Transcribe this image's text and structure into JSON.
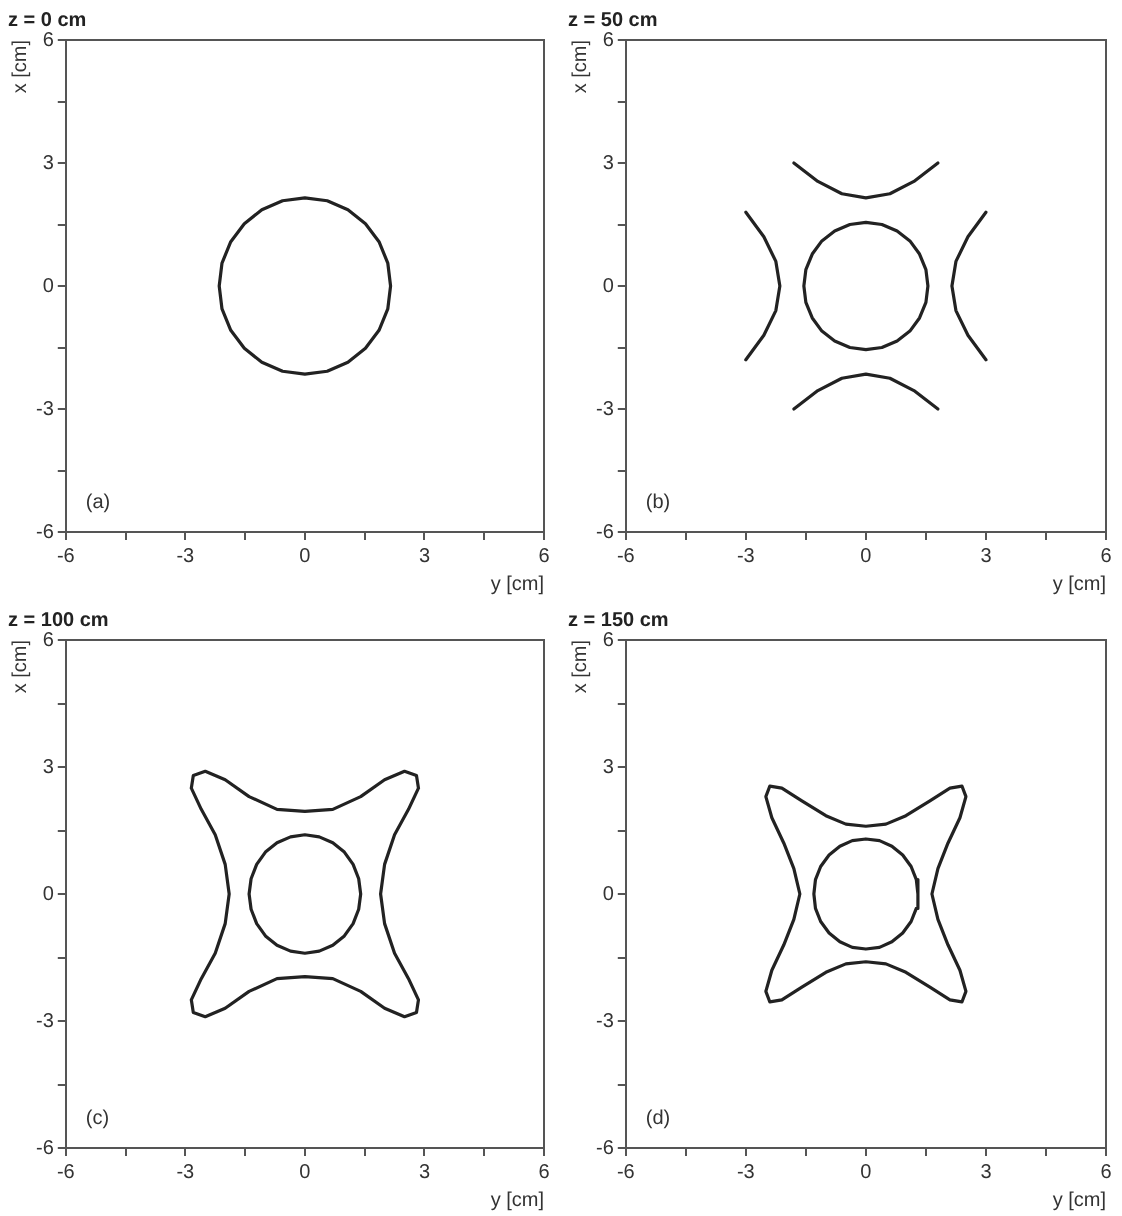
{
  "chart_data": [
    {
      "type": "line",
      "title": "z = 0 cm",
      "xlabel": "y [cm]",
      "ylabel": "x [cm]",
      "annotations": [
        "(a)"
      ],
      "marker": "none",
      "legend": false,
      "xlim": [
        -6,
        6
      ],
      "ylim": [
        -6,
        6
      ],
      "xticks": [
        -6,
        {
          "value": -4.5,
          "label": null
        },
        -3,
        {
          "value": -1.5,
          "label": null
        },
        0,
        {
          "value": 1.5,
          "label": null
        },
        3,
        {
          "value": 4.5,
          "label": null
        },
        6
      ],
      "yticks": [
        -6,
        {
          "value": -4.5,
          "label": null
        },
        -3,
        {
          "value": -1.5,
          "label": null
        },
        0,
        {
          "value": 1.5,
          "label": null
        },
        3,
        {
          "value": 4.5,
          "label": null
        },
        6
      ],
      "series": [
        {
          "color": "#222222",
          "x": [
            -2.15,
            -2.08,
            -1.86,
            -1.52,
            -1.08,
            -0.56,
            0,
            0.56,
            1.08,
            1.52,
            1.86,
            2.08,
            2.15,
            null,
            -2.15,
            -2.08,
            -1.86,
            -1.52,
            -1.08,
            -0.56,
            0,
            0.56,
            1.08,
            1.52,
            1.86,
            2.08,
            2.15
          ],
          "values": [
            0,
            0.56,
            1.08,
            1.52,
            1.86,
            2.08,
            2.15,
            2.08,
            1.86,
            1.52,
            1.08,
            0.56,
            0,
            null,
            0,
            -0.56,
            -1.08,
            -1.52,
            -1.86,
            -2.08,
            -2.15,
            -2.08,
            -1.86,
            -1.52,
            -1.08,
            -0.56,
            0
          ]
        }
      ]
    },
    {
      "type": "line",
      "title": "z = 50 cm",
      "xlabel": "y [cm]",
      "ylabel": "x [cm]",
      "annotations": [
        "(b)"
      ],
      "marker": "none",
      "legend": false,
      "xlim": [
        -6,
        6
      ],
      "ylim": [
        -6,
        6
      ],
      "xticks": [
        -6,
        {
          "value": -4.5,
          "label": null
        },
        -3,
        {
          "value": -1.5,
          "label": null
        },
        0,
        {
          "value": 1.5,
          "label": null
        },
        3,
        {
          "value": 4.5,
          "label": null
        },
        6
      ],
      "yticks": [
        -6,
        {
          "value": -4.5,
          "label": null
        },
        -3,
        {
          "value": -1.5,
          "label": null
        },
        0,
        {
          "value": 1.5,
          "label": null
        },
        3,
        {
          "value": 4.5,
          "label": null
        },
        6
      ],
      "series": [
        {
          "color": "#222222",
          "x": [
            -1.55,
            -1.5,
            -1.34,
            -1.1,
            -0.78,
            -0.4,
            0,
            0.4,
            0.78,
            1.1,
            1.34,
            1.5,
            1.55,
            null,
            -1.55,
            -1.5,
            -1.34,
            -1.1,
            -0.78,
            -0.4,
            0,
            0.4,
            0.78,
            1.1,
            1.34,
            1.5,
            1.55
          ],
          "values": [
            0,
            0.4,
            0.78,
            1.1,
            1.34,
            1.5,
            1.55,
            1.5,
            1.34,
            1.1,
            0.78,
            0.4,
            0,
            null,
            0,
            -0.4,
            -0.78,
            -1.1,
            -1.34,
            -1.5,
            -1.55,
            -1.5,
            -1.34,
            -1.1,
            -0.78,
            -0.4,
            0
          ]
        },
        {
          "color": "#222222",
          "x": [
            -1.8,
            -1.2,
            -0.6,
            0,
            0.6,
            1.2,
            1.8
          ],
          "values": [
            3.0,
            2.55,
            2.25,
            2.15,
            2.25,
            2.55,
            3.0
          ]
        },
        {
          "color": "#222222",
          "x": [
            -1.8,
            -1.2,
            -0.6,
            0,
            0.6,
            1.2,
            1.8
          ],
          "values": [
            -3.0,
            -2.55,
            -2.25,
            -2.15,
            -2.25,
            -2.55,
            -3.0
          ]
        },
        {
          "color": "#222222",
          "x": [
            2.15,
            2.25,
            2.55,
            3.0,
            null,
            2.15,
            2.25,
            2.55,
            3.0
          ],
          "values": [
            0,
            0.6,
            1.2,
            1.8,
            null,
            0,
            -0.6,
            -1.2,
            -1.8
          ]
        },
        {
          "color": "#222222",
          "x": [
            -3.0,
            -2.55,
            -2.25,
            -2.15,
            null,
            -3.0,
            -2.55,
            -2.25,
            -2.15
          ],
          "values": [
            1.8,
            1.2,
            0.6,
            0,
            null,
            -1.8,
            -1.2,
            -0.6,
            0
          ]
        }
      ]
    },
    {
      "type": "line",
      "title": "z = 100 cm",
      "xlabel": "y [cm]",
      "ylabel": "x [cm]",
      "annotations": [
        "(c)"
      ],
      "marker": "none",
      "legend": false,
      "xlim": [
        -6,
        6
      ],
      "ylim": [
        -6,
        6
      ],
      "xticks": [
        -6,
        {
          "value": -4.5,
          "label": null
        },
        -3,
        {
          "value": -1.5,
          "label": null
        },
        0,
        {
          "value": 1.5,
          "label": null
        },
        3,
        {
          "value": 4.5,
          "label": null
        },
        6
      ],
      "yticks": [
        -6,
        {
          "value": -4.5,
          "label": null
        },
        -3,
        {
          "value": -1.5,
          "label": null
        },
        0,
        {
          "value": 1.5,
          "label": null
        },
        3,
        {
          "value": 4.5,
          "label": null
        },
        6
      ],
      "series": [
        {
          "color": "#222222",
          "x": [
            -1.4,
            -1.35,
            -1.21,
            -0.99,
            -0.7,
            -0.36,
            0,
            0.36,
            0.7,
            0.99,
            1.21,
            1.35,
            1.4,
            null,
            -1.4,
            -1.35,
            -1.21,
            -0.99,
            -0.7,
            -0.36,
            0,
            0.36,
            0.7,
            0.99,
            1.21,
            1.35,
            1.4
          ],
          "values": [
            0,
            0.36,
            0.7,
            0.99,
            1.21,
            1.35,
            1.4,
            1.35,
            1.21,
            0.99,
            0.7,
            0.36,
            0,
            null,
            0,
            -0.36,
            -0.7,
            -0.99,
            -1.21,
            -1.35,
            -1.4,
            -1.35,
            -1.21,
            -0.99,
            -0.7,
            -0.36,
            0
          ]
        },
        {
          "color": "#222222",
          "x": [
            -2.85,
            -2.8,
            -2.5,
            -2.0,
            -1.4,
            -0.7,
            0,
            0.7,
            1.4,
            2.0,
            2.5,
            2.8,
            2.85,
            null,
            -2.85,
            -2.8,
            -2.5,
            -2.0,
            -1.4,
            -0.7,
            0,
            0.7,
            1.4,
            2.0,
            2.5,
            2.8,
            2.85,
            null,
            1.9,
            2.0,
            2.25,
            2.6,
            2.85,
            null,
            1.9,
            2.0,
            2.25,
            2.6,
            2.85,
            null,
            -2.85,
            -2.6,
            -2.25,
            -2.0,
            -1.9,
            null,
            -2.85,
            -2.6,
            -2.25,
            -2.0,
            -1.9
          ],
          "values": [
            2.5,
            2.8,
            2.9,
            2.7,
            2.3,
            2.0,
            1.95,
            2.0,
            2.3,
            2.7,
            2.9,
            2.8,
            2.5,
            null,
            -2.5,
            -2.8,
            -2.9,
            -2.7,
            -2.3,
            -2.0,
            -1.95,
            -2.0,
            -2.3,
            -2.7,
            -2.9,
            -2.8,
            -2.5,
            null,
            0,
            0.7,
            1.4,
            2.0,
            2.5,
            null,
            0,
            -0.7,
            -1.4,
            -2.0,
            -2.5,
            null,
            2.5,
            2.0,
            1.4,
            0.7,
            0,
            null,
            -2.5,
            -2.0,
            -1.4,
            -0.7,
            0
          ]
        }
      ]
    },
    {
      "type": "line",
      "title": "z = 150 cm",
      "xlabel": "y [cm]",
      "ylabel": "x [cm]",
      "annotations": [
        "(d)"
      ],
      "marker": "none",
      "legend": false,
      "xlim": [
        -6,
        6
      ],
      "ylim": [
        -6,
        6
      ],
      "xticks": [
        -6,
        {
          "value": -4.5,
          "label": null
        },
        -3,
        {
          "value": -1.5,
          "label": null
        },
        0,
        {
          "value": 1.5,
          "label": null
        },
        3,
        {
          "value": 4.5,
          "label": null
        },
        6
      ],
      "yticks": [
        -6,
        {
          "value": -4.5,
          "label": null
        },
        -3,
        {
          "value": -1.5,
          "label": null
        },
        0,
        {
          "value": 1.5,
          "label": null
        },
        3,
        {
          "value": 4.5,
          "label": null
        },
        6
      ],
      "series": [
        {
          "color": "#222222",
          "x": [
            -1.3,
            -1.26,
            -1.13,
            -0.92,
            -0.65,
            -0.34,
            0,
            0.34,
            0.65,
            0.92,
            1.13,
            1.26,
            1.3,
            null,
            -1.3,
            -1.26,
            -1.13,
            -0.92,
            -0.65,
            -0.34,
            0,
            0.34,
            0.65,
            0.92,
            1.13,
            1.26,
            1.3
          ],
          "values": [
            0,
            0.34,
            0.65,
            0.92,
            1.13,
            1.26,
            1.3,
            1.26,
            1.13,
            0.92,
            0.65,
            0.34,
            0,
            null,
            0,
            -0.34,
            -0.65,
            -0.92,
            -1.13,
            -1.26,
            -1.3,
            -1.26,
            -1.13,
            -0.92,
            -0.65,
            -0.34,
            0
          ]
        },
        {
          "color": "#222222",
          "x": [
            -2.5,
            -2.4,
            -2.1,
            -1.6,
            -1.0,
            -0.5,
            0,
            0.5,
            1.0,
            1.6,
            2.1,
            2.4,
            2.5,
            null,
            -2.5,
            -2.4,
            -2.1,
            -1.6,
            -1.0,
            -0.5,
            0,
            0.5,
            1.0,
            1.6,
            2.1,
            2.4,
            2.5,
            null,
            1.65,
            1.8,
            2.05,
            2.35,
            2.5,
            null,
            1.65,
            1.8,
            2.05,
            2.35,
            2.5,
            null,
            -2.5,
            -2.35,
            -2.05,
            -1.8,
            -1.65,
            null,
            -2.5,
            -2.35,
            -2.05,
            -1.8,
            -1.65
          ],
          "values": [
            2.3,
            2.55,
            2.5,
            2.2,
            1.85,
            1.65,
            1.6,
            1.65,
            1.85,
            2.2,
            2.5,
            2.55,
            2.3,
            null,
            -2.3,
            -2.55,
            -2.5,
            -2.2,
            -1.85,
            -1.65,
            -1.6,
            -1.65,
            -1.85,
            -2.2,
            -2.5,
            -2.55,
            -2.3,
            null,
            0,
            0.6,
            1.2,
            1.8,
            2.3,
            null,
            0,
            -0.6,
            -1.2,
            -1.8,
            -2.3,
            null,
            2.3,
            1.8,
            1.2,
            0.6,
            0,
            null,
            -2.3,
            -1.8,
            -1.2,
            -0.6,
            0
          ]
        }
      ]
    }
  ]
}
